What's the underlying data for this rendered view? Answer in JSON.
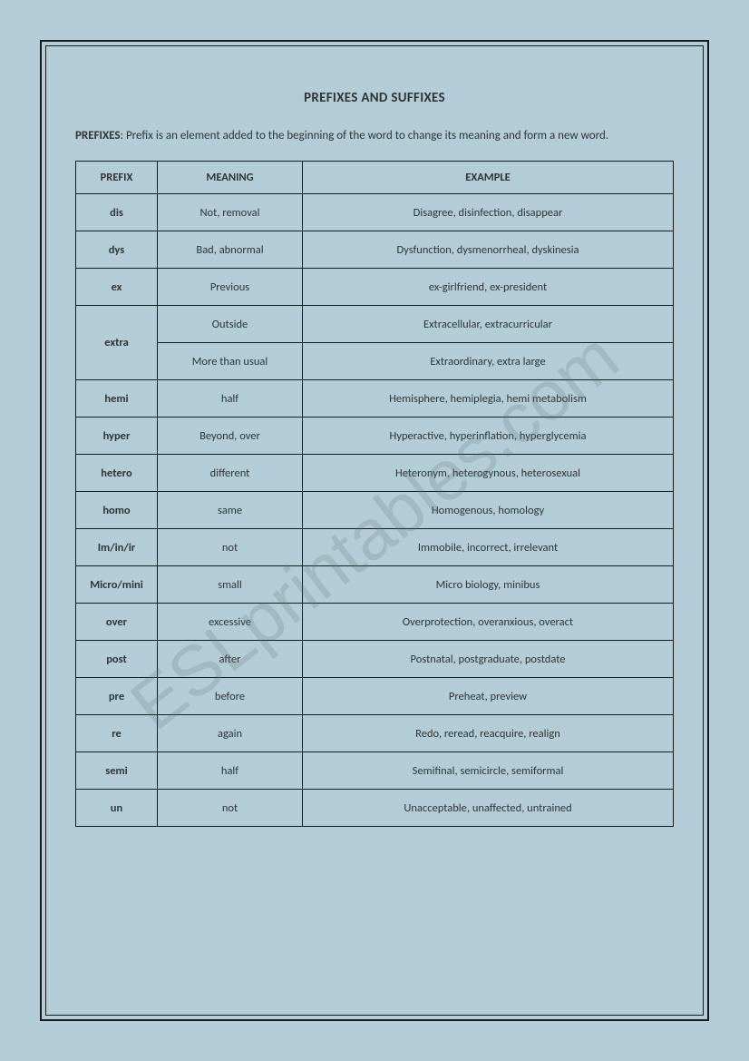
{
  "title": "PREFIXES AND SUFFIXES",
  "intro_label": "PREFIXES",
  "intro_text": ": Prefix is an element added to the beginning of the word to change its meaning and form a new word.",
  "watermark": "ESLprintables.com",
  "table": {
    "columns": [
      "PREFIX",
      "MEANING",
      "EXAMPLE"
    ],
    "rows": [
      {
        "prefix": "dis",
        "meaning": "Not, removal",
        "example": "Disagree, disinfection, disappear",
        "rowspan": 1
      },
      {
        "prefix": "dys",
        "meaning": "Bad, abnormal",
        "example": "Dysfunction, dysmenorrheal, dyskinesia",
        "rowspan": 1
      },
      {
        "prefix": "ex",
        "meaning": "Previous",
        "example": "ex-girlfriend, ex-president",
        "rowspan": 1
      },
      {
        "prefix": "extra",
        "meaning": "Outside",
        "example": "Extracellular, extracurricular",
        "rowspan": 2
      },
      {
        "prefix": "",
        "meaning": "More than usual",
        "example": "Extraordinary, extra large",
        "rowspan": 0
      },
      {
        "prefix": "hemi",
        "meaning": "half",
        "example": "Hemisphere, hemiplegia, hemi metabolism",
        "rowspan": 1
      },
      {
        "prefix": "hyper",
        "meaning": "Beyond, over",
        "example": "Hyperactive, hyperinflation, hyperglycemia",
        "rowspan": 1
      },
      {
        "prefix": "hetero",
        "meaning": "different",
        "example": "Heteronym, heterogynous, heterosexual",
        "rowspan": 1
      },
      {
        "prefix": "homo",
        "meaning": "same",
        "example": "Homogenous, homology",
        "rowspan": 1
      },
      {
        "prefix": "Im/in/ir",
        "meaning": "not",
        "example": "Immobile, incorrect, irrelevant",
        "rowspan": 1
      },
      {
        "prefix": "Micro/mini",
        "meaning": "small",
        "example": "Micro biology, minibus",
        "rowspan": 1
      },
      {
        "prefix": "over",
        "meaning": "excessive",
        "example": "Overprotection, overanxious, overact",
        "rowspan": 1
      },
      {
        "prefix": "post",
        "meaning": "after",
        "example": "Postnatal, postgraduate, postdate",
        "rowspan": 1
      },
      {
        "prefix": "pre",
        "meaning": "before",
        "example": "Preheat, preview",
        "rowspan": 1
      },
      {
        "prefix": "re",
        "meaning": "again",
        "example": "Redo, reread, reacquire, realign",
        "rowspan": 1
      },
      {
        "prefix": "semi",
        "meaning": "half",
        "example": "Semifinal, semicircle, semiformal",
        "rowspan": 1
      },
      {
        "prefix": "un",
        "meaning": "not",
        "example": "Unacceptable, unaffected, untrained",
        "rowspan": 1
      }
    ]
  }
}
